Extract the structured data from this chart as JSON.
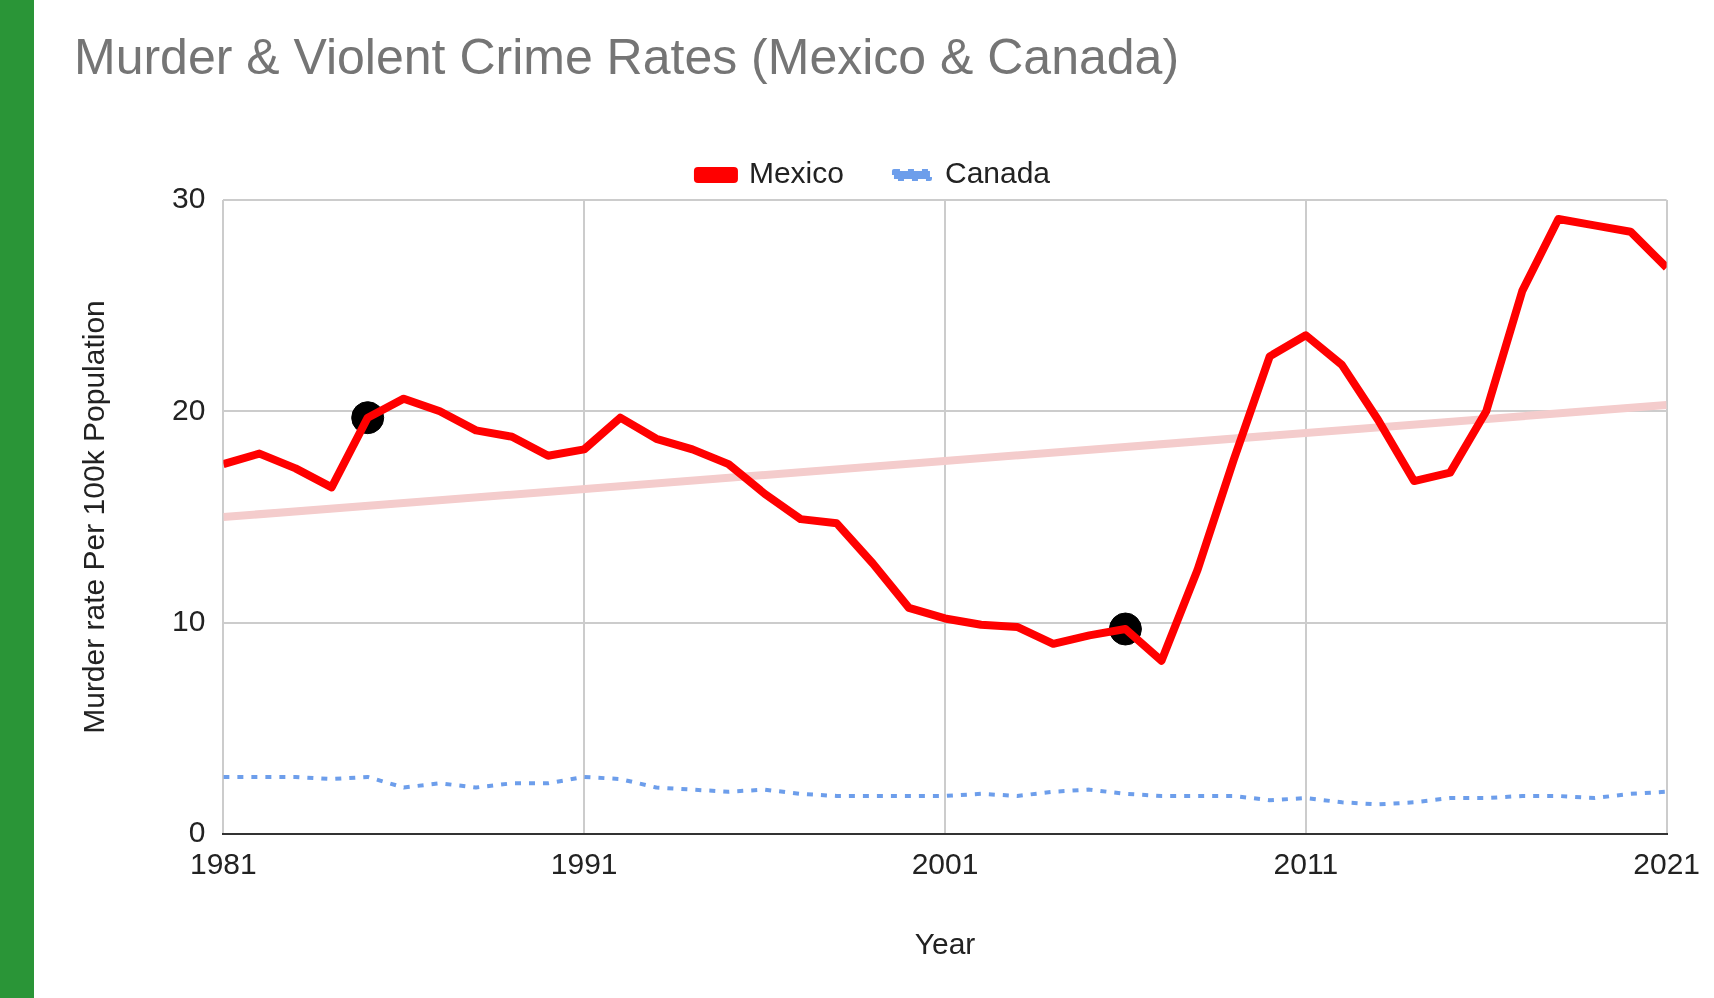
{
  "chart_data": {
    "type": "line",
    "title": "Murder & Violent Crime Rates (Mexico & Canada)",
    "xlabel": "Year",
    "ylabel": "Murder rate Per 100k Population",
    "x": [
      1981,
      1982,
      1983,
      1984,
      1985,
      1986,
      1987,
      1988,
      1989,
      1990,
      1991,
      1992,
      1993,
      1994,
      1995,
      1996,
      1997,
      1998,
      1999,
      2000,
      2001,
      2002,
      2003,
      2004,
      2005,
      2006,
      2007,
      2008,
      2009,
      2010,
      2011,
      2012,
      2013,
      2014,
      2015,
      2016,
      2017,
      2018,
      2019,
      2020,
      2021
    ],
    "series": [
      {
        "name": "Mexico",
        "color": "#ff0000",
        "line_style": "solid",
        "values": [
          17.5,
          18.0,
          17.3,
          16.4,
          19.7,
          20.6,
          20.0,
          19.1,
          18.8,
          17.9,
          18.2,
          19.7,
          18.7,
          18.2,
          17.5,
          16.1,
          14.9,
          14.7,
          12.8,
          10.7,
          10.2,
          9.9,
          9.8,
          9.0,
          9.4,
          9.7,
          8.2,
          12.5,
          17.7,
          22.6,
          23.6,
          22.2,
          19.6,
          16.7,
          17.1,
          20.0,
          25.7,
          29.1,
          28.8,
          28.5,
          26.8
        ]
      },
      {
        "name": "Canada",
        "color": "#6d9eeb",
        "line_style": "dotted",
        "values": [
          2.7,
          2.7,
          2.7,
          2.6,
          2.7,
          2.2,
          2.4,
          2.2,
          2.4,
          2.4,
          2.7,
          2.6,
          2.2,
          2.1,
          2.0,
          2.1,
          1.9,
          1.8,
          1.8,
          1.8,
          1.8,
          1.9,
          1.8,
          2.0,
          2.1,
          1.9,
          1.8,
          1.8,
          1.8,
          1.6,
          1.7,
          1.5,
          1.4,
          1.5,
          1.7,
          1.7,
          1.8,
          1.8,
          1.7,
          1.9,
          2.0
        ]
      },
      {
        "type": "line",
        "color": "#f4cccc",
        "line_style": "solid",
        "x": [
          1981,
          2021
        ],
        "values": [
          15.0,
          20.3
        ]
      },
      {
        "type": "scatter",
        "color": "#000000",
        "marker": "circle",
        "x": [
          1985,
          2006
        ],
        "values": [
          19.7,
          9.7
        ]
      }
    ],
    "xlim": [
      1981,
      2021
    ],
    "xticks": [
      1981,
      1991,
      2001,
      2011,
      2021
    ],
    "ylim": [
      0,
      30
    ],
    "yticks": [
      0,
      10,
      20,
      30
    ],
    "grid": true,
    "legend": "top",
    "marker": "none"
  }
}
